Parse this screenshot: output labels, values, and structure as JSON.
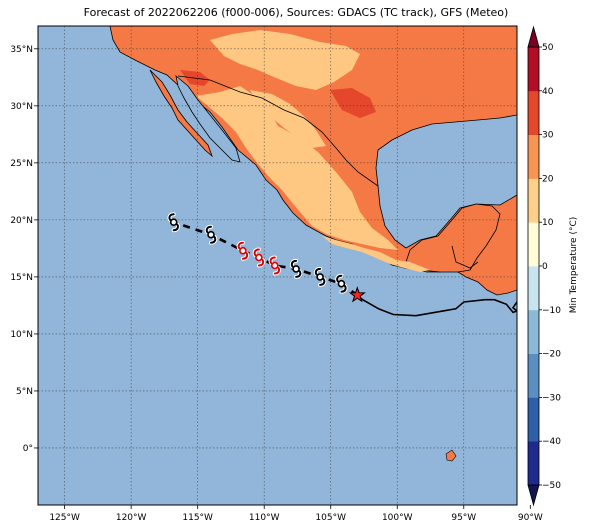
{
  "title": "Forecast of 2022062206 (f000-006), Sources: GDACS (TC track), GFS (Meteo)",
  "map": {
    "lon_range": [
      -127,
      -91
    ],
    "lat_range": [
      -5,
      37
    ],
    "lon_ticks": [
      -125,
      -120,
      -115,
      -110,
      -105,
      -100,
      -95,
      -90
    ],
    "lat_ticks": [
      0,
      5,
      10,
      15,
      20,
      25,
      30,
      35
    ],
    "lon_tick_labels": [
      "125°W",
      "120°W",
      "115°W",
      "110°W",
      "105°W",
      "100°W",
      "95°W",
      "90°W"
    ],
    "lat_tick_labels": [
      "0°",
      "5°N",
      "10°N",
      "15°N",
      "20°N",
      "25°N",
      "30°N",
      "35°N"
    ],
    "grid": true,
    "ocean_color": "#92b6d9"
  },
  "storm": {
    "current_position": {
      "lon": -103.0,
      "lat": 13.4,
      "marker": "star-icon",
      "color": "#ff2020"
    },
    "past_track": [
      {
        "lon": -91.0,
        "lat": 12.8
      },
      {
        "lon": -91.3,
        "lat": 12.3
      },
      {
        "lon": -91.0,
        "lat": 12.0
      },
      {
        "lon": -91.3,
        "lat": 11.9
      },
      {
        "lon": -91.8,
        "lat": 12.6
      },
      {
        "lon": -92.7,
        "lat": 13.0
      },
      {
        "lon": -93.4,
        "lat": 13.0
      },
      {
        "lon": -95.0,
        "lat": 12.8
      },
      {
        "lon": -95.6,
        "lat": 12.2
      },
      {
        "lon": -96.6,
        "lat": 12.0
      },
      {
        "lon": -98.6,
        "lat": 11.6
      },
      {
        "lon": -100.3,
        "lat": 11.7
      },
      {
        "lon": -101.4,
        "lat": 12.2
      },
      {
        "lon": -102.6,
        "lat": 13.0
      },
      {
        "lon": -103.0,
        "lat": 13.4
      }
    ],
    "forecast_points": [
      {
        "lon": -104.2,
        "lat": 14.4,
        "color": "#000000"
      },
      {
        "lon": -105.8,
        "lat": 15.0,
        "color": "#000000"
      },
      {
        "lon": -107.6,
        "lat": 15.7,
        "color": "#000000"
      },
      {
        "lon": -109.2,
        "lat": 16.0,
        "color": "#e00000"
      },
      {
        "lon": -110.4,
        "lat": 16.7,
        "color": "#e00000"
      },
      {
        "lon": -111.6,
        "lat": 17.3,
        "color": "#e00000"
      },
      {
        "lon": -114.0,
        "lat": 18.7,
        "color": "#000000"
      },
      {
        "lon": -116.8,
        "lat": 19.8,
        "color": "#000000"
      }
    ],
    "symbol_icon": "hurricane-icon"
  },
  "colorbar": {
    "label": "Min Temperature (°C)",
    "levels": [
      -50,
      -40,
      -30,
      -20,
      -10,
      0,
      10,
      20,
      30,
      40,
      50
    ],
    "tick_labels": [
      "−50",
      "−40",
      "−30",
      "−20",
      "−10",
      "0",
      "10",
      "20",
      "30",
      "40",
      "50"
    ],
    "colors": [
      "#1e2b8c",
      "#2f5fa8",
      "#5b8fc2",
      "#8bbad8",
      "#c8e5ef",
      "#fffcd8",
      "#fed08a",
      "#f99552",
      "#e4472c",
      "#b30d26"
    ],
    "extend_low_color": "#12154f",
    "extend_high_color": "#7c0021"
  }
}
